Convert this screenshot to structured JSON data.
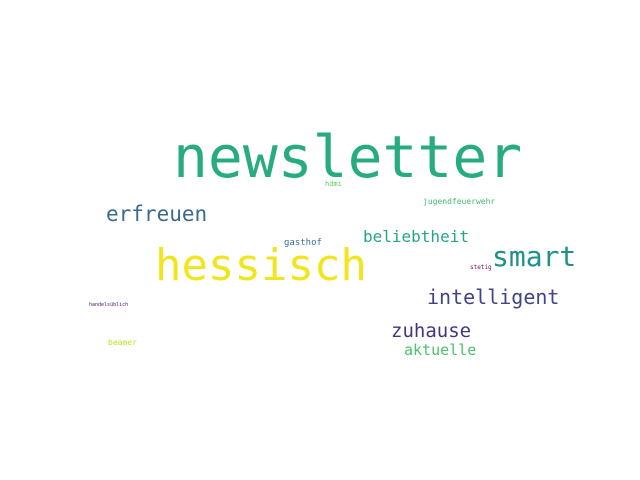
{
  "word_cloud": {
    "words": [
      {
        "key": "newsletter",
        "text": "newsletter",
        "color": "#27ab80"
      },
      {
        "key": "hessisch",
        "text": "hessisch",
        "color": "#f1e51d"
      },
      {
        "key": "smart",
        "text": "smart",
        "color": "#21908d"
      },
      {
        "key": "erfreuen",
        "text": "erfreuen",
        "color": "#3b6a8c"
      },
      {
        "key": "intelligent",
        "text": "intelligent",
        "color": "#414487"
      },
      {
        "key": "zuhause",
        "text": "zuhause",
        "color": "#46337f"
      },
      {
        "key": "beliebtheit",
        "text": "beliebtheit",
        "color": "#22a785"
      },
      {
        "key": "aktuelle",
        "text": "aktuelle",
        "color": "#4ac16d"
      },
      {
        "key": "gasthof",
        "text": "gasthof",
        "color": "#3d6f9c"
      },
      {
        "key": "jugendfeuerwehr",
        "text": "jugendfeuerwehr",
        "color": "#3fbc73"
      },
      {
        "key": "hdmi",
        "text": "hdmi",
        "color": "#5ec962"
      },
      {
        "key": "beamer",
        "text": "beamer",
        "color": "#c2df23"
      },
      {
        "key": "stetig",
        "text": "stetig",
        "color": "#7a0a6b"
      },
      {
        "key": "handelsublich",
        "text": "handelsüblich",
        "color": "#471365"
      }
    ]
  }
}
